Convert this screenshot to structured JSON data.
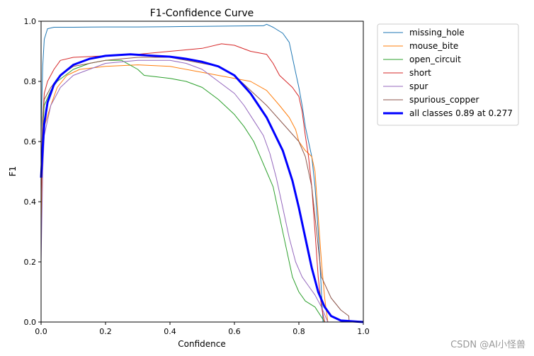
{
  "chart_data": {
    "type": "line",
    "title": "F1-Confidence Curve",
    "xlabel": "Confidence",
    "ylabel": "F1",
    "xlim": [
      0,
      1
    ],
    "ylim": [
      0,
      1
    ],
    "xticks": [
      "0.0",
      "0.2",
      "0.4",
      "0.6",
      "0.8",
      "1.0"
    ],
    "yticks": [
      "0.0",
      "0.2",
      "0.4",
      "0.6",
      "0.8",
      "1.0"
    ],
    "grid": false,
    "legend_position": "outside-top-right",
    "series": [
      {
        "name": "missing_hole",
        "color": "#1f77b4",
        "width": 1,
        "points": [
          [
            0,
            0.63
          ],
          [
            0.005,
            0.85
          ],
          [
            0.01,
            0.94
          ],
          [
            0.02,
            0.975
          ],
          [
            0.04,
            0.98
          ],
          [
            0.1,
            0.98
          ],
          [
            0.2,
            0.981
          ],
          [
            0.3,
            0.981
          ],
          [
            0.4,
            0.982
          ],
          [
            0.5,
            0.983
          ],
          [
            0.6,
            0.984
          ],
          [
            0.69,
            0.985
          ],
          [
            0.7,
            0.99
          ],
          [
            0.72,
            0.98
          ],
          [
            0.75,
            0.96
          ],
          [
            0.77,
            0.93
          ],
          [
            0.78,
            0.88
          ],
          [
            0.79,
            0.83
          ],
          [
            0.8,
            0.78
          ],
          [
            0.81,
            0.72
          ],
          [
            0.82,
            0.65
          ],
          [
            0.83,
            0.6
          ],
          [
            0.84,
            0.55
          ],
          [
            0.85,
            0.45
          ],
          [
            0.86,
            0.3
          ],
          [
            0.87,
            0.1
          ],
          [
            0.875,
            0.0
          ]
        ]
      },
      {
        "name": "mouse_bite",
        "color": "#ff7f0e",
        "width": 1,
        "points": [
          [
            0,
            0.3
          ],
          [
            0.005,
            0.55
          ],
          [
            0.01,
            0.65
          ],
          [
            0.03,
            0.72
          ],
          [
            0.05,
            0.78
          ],
          [
            0.08,
            0.82
          ],
          [
            0.12,
            0.84
          ],
          [
            0.2,
            0.85
          ],
          [
            0.3,
            0.855
          ],
          [
            0.4,
            0.85
          ],
          [
            0.5,
            0.83
          ],
          [
            0.55,
            0.82
          ],
          [
            0.6,
            0.81
          ],
          [
            0.65,
            0.8
          ],
          [
            0.7,
            0.77
          ],
          [
            0.74,
            0.72
          ],
          [
            0.77,
            0.68
          ],
          [
            0.79,
            0.64
          ],
          [
            0.8,
            0.6
          ],
          [
            0.82,
            0.57
          ],
          [
            0.84,
            0.55
          ],
          [
            0.85,
            0.5
          ],
          [
            0.86,
            0.35
          ],
          [
            0.87,
            0.2
          ],
          [
            0.88,
            0.08
          ],
          [
            0.89,
            0.0
          ]
        ]
      },
      {
        "name": "open_circuit",
        "color": "#2ca02c",
        "width": 1,
        "points": [
          [
            0,
            0.45
          ],
          [
            0.005,
            0.65
          ],
          [
            0.01,
            0.72
          ],
          [
            0.03,
            0.77
          ],
          [
            0.05,
            0.8
          ],
          [
            0.1,
            0.84
          ],
          [
            0.15,
            0.86
          ],
          [
            0.2,
            0.87
          ],
          [
            0.25,
            0.87
          ],
          [
            0.3,
            0.84
          ],
          [
            0.32,
            0.82
          ],
          [
            0.4,
            0.81
          ],
          [
            0.45,
            0.8
          ],
          [
            0.5,
            0.78
          ],
          [
            0.55,
            0.74
          ],
          [
            0.6,
            0.69
          ],
          [
            0.63,
            0.65
          ],
          [
            0.66,
            0.6
          ],
          [
            0.68,
            0.55
          ],
          [
            0.7,
            0.5
          ],
          [
            0.72,
            0.45
          ],
          [
            0.74,
            0.35
          ],
          [
            0.76,
            0.25
          ],
          [
            0.78,
            0.15
          ],
          [
            0.8,
            0.1
          ],
          [
            0.82,
            0.07
          ],
          [
            0.85,
            0.05
          ],
          [
            0.88,
            0.0
          ]
        ]
      },
      {
        "name": "short",
        "color": "#d62728",
        "width": 1,
        "points": [
          [
            0,
            0.4
          ],
          [
            0.005,
            0.68
          ],
          [
            0.01,
            0.76
          ],
          [
            0.02,
            0.8
          ],
          [
            0.04,
            0.84
          ],
          [
            0.06,
            0.87
          ],
          [
            0.1,
            0.88
          ],
          [
            0.2,
            0.885
          ],
          [
            0.3,
            0.89
          ],
          [
            0.4,
            0.9
          ],
          [
            0.5,
            0.91
          ],
          [
            0.56,
            0.925
          ],
          [
            0.6,
            0.92
          ],
          [
            0.65,
            0.9
          ],
          [
            0.7,
            0.89
          ],
          [
            0.72,
            0.86
          ],
          [
            0.74,
            0.82
          ],
          [
            0.76,
            0.8
          ],
          [
            0.78,
            0.78
          ],
          [
            0.8,
            0.75
          ],
          [
            0.81,
            0.7
          ],
          [
            0.82,
            0.62
          ],
          [
            0.83,
            0.55
          ],
          [
            0.84,
            0.45
          ],
          [
            0.85,
            0.3
          ],
          [
            0.86,
            0.15
          ],
          [
            0.87,
            0.05
          ],
          [
            0.88,
            0.0
          ]
        ]
      },
      {
        "name": "spur",
        "color": "#9467bd",
        "width": 1,
        "points": [
          [
            0,
            0.2
          ],
          [
            0.005,
            0.5
          ],
          [
            0.01,
            0.62
          ],
          [
            0.03,
            0.72
          ],
          [
            0.06,
            0.78
          ],
          [
            0.1,
            0.82
          ],
          [
            0.2,
            0.86
          ],
          [
            0.3,
            0.87
          ],
          [
            0.4,
            0.87
          ],
          [
            0.45,
            0.86
          ],
          [
            0.5,
            0.84
          ],
          [
            0.55,
            0.8
          ],
          [
            0.6,
            0.76
          ],
          [
            0.63,
            0.72
          ],
          [
            0.66,
            0.67
          ],
          [
            0.69,
            0.62
          ],
          [
            0.71,
            0.56
          ],
          [
            0.73,
            0.48
          ],
          [
            0.75,
            0.38
          ],
          [
            0.77,
            0.28
          ],
          [
            0.79,
            0.2
          ],
          [
            0.81,
            0.15
          ],
          [
            0.83,
            0.12
          ],
          [
            0.85,
            0.09
          ],
          [
            0.87,
            0.05
          ],
          [
            0.89,
            0.0
          ]
        ]
      },
      {
        "name": "spurious_copper",
        "color": "#8c564b",
        "width": 1,
        "points": [
          [
            0,
            0.5
          ],
          [
            0.005,
            0.68
          ],
          [
            0.01,
            0.74
          ],
          [
            0.03,
            0.78
          ],
          [
            0.06,
            0.82
          ],
          [
            0.1,
            0.85
          ],
          [
            0.2,
            0.87
          ],
          [
            0.3,
            0.88
          ],
          [
            0.4,
            0.88
          ],
          [
            0.45,
            0.87
          ],
          [
            0.5,
            0.86
          ],
          [
            0.55,
            0.85
          ],
          [
            0.6,
            0.82
          ],
          [
            0.65,
            0.77
          ],
          [
            0.7,
            0.72
          ],
          [
            0.75,
            0.66
          ],
          [
            0.8,
            0.6
          ],
          [
            0.82,
            0.55
          ],
          [
            0.84,
            0.45
          ],
          [
            0.85,
            0.35
          ],
          [
            0.86,
            0.25
          ],
          [
            0.87,
            0.15
          ],
          [
            0.9,
            0.08
          ],
          [
            0.93,
            0.04
          ],
          [
            0.955,
            0.02
          ],
          [
            0.956,
            0.0
          ]
        ]
      },
      {
        "name": "all classes 0.89 at 0.277",
        "color": "#0000ff",
        "width": 3,
        "points": [
          [
            0,
            0.48
          ],
          [
            0.005,
            0.58
          ],
          [
            0.01,
            0.66
          ],
          [
            0.02,
            0.73
          ],
          [
            0.04,
            0.79
          ],
          [
            0.06,
            0.82
          ],
          [
            0.1,
            0.855
          ],
          [
            0.15,
            0.875
          ],
          [
            0.2,
            0.885
          ],
          [
            0.277,
            0.89
          ],
          [
            0.35,
            0.885
          ],
          [
            0.4,
            0.882
          ],
          [
            0.45,
            0.875
          ],
          [
            0.5,
            0.865
          ],
          [
            0.55,
            0.85
          ],
          [
            0.6,
            0.82
          ],
          [
            0.65,
            0.76
          ],
          [
            0.7,
            0.68
          ],
          [
            0.75,
            0.57
          ],
          [
            0.78,
            0.47
          ],
          [
            0.8,
            0.38
          ],
          [
            0.82,
            0.28
          ],
          [
            0.84,
            0.18
          ],
          [
            0.86,
            0.1
          ],
          [
            0.88,
            0.05
          ],
          [
            0.9,
            0.02
          ],
          [
            0.93,
            0.005
          ],
          [
            1.0,
            0.0
          ]
        ]
      }
    ]
  },
  "watermark": "CSDN @AI小怪兽"
}
